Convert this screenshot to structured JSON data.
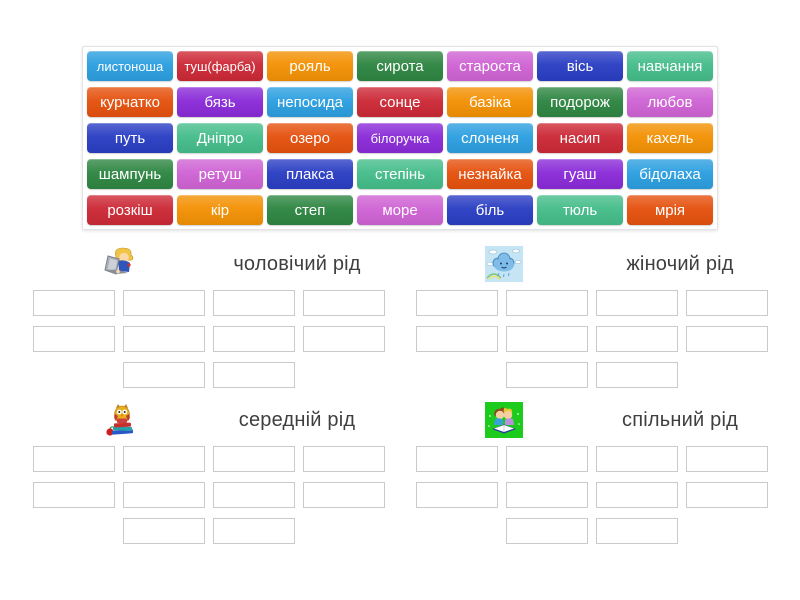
{
  "palette": {
    "azure": "#2c9fe0",
    "crimson": "#cc2936",
    "orange": "#f39104",
    "green": "#2e8642",
    "orchid": "#cf63d4",
    "royal": "#2a3ec3",
    "seafoam": "#45bd8a",
    "deep_orange": "#e5510e",
    "violet": "#8a2bd8"
  },
  "word_bank": {
    "tiles": [
      {
        "label": "листоноша",
        "color": "azure"
      },
      {
        "label": "туш(фарба)",
        "color": "crimson"
      },
      {
        "label": "рояль",
        "color": "orange"
      },
      {
        "label": "сирота",
        "color": "green"
      },
      {
        "label": "староста",
        "color": "orchid"
      },
      {
        "label": "вісь",
        "color": "royal"
      },
      {
        "label": "навчання",
        "color": "seafoam"
      },
      {
        "label": "курчатко",
        "color": "deep_orange"
      },
      {
        "label": "бязь",
        "color": "violet"
      },
      {
        "label": "непосида",
        "color": "azure"
      },
      {
        "label": "сонце",
        "color": "crimson"
      },
      {
        "label": "базіка",
        "color": "orange"
      },
      {
        "label": "подорож",
        "color": "green"
      },
      {
        "label": "любов",
        "color": "orchid"
      },
      {
        "label": "путь",
        "color": "royal"
      },
      {
        "label": "Дніпро",
        "color": "seafoam"
      },
      {
        "label": "озеро",
        "color": "deep_orange"
      },
      {
        "label": "білоручка",
        "color": "violet"
      },
      {
        "label": "слоненя",
        "color": "azure"
      },
      {
        "label": "насип",
        "color": "crimson"
      },
      {
        "label": "кахель",
        "color": "orange"
      },
      {
        "label": "шампунь",
        "color": "green"
      },
      {
        "label": "ретуш",
        "color": "orchid"
      },
      {
        "label": "плакса",
        "color": "royal"
      },
      {
        "label": "степінь",
        "color": "seafoam"
      },
      {
        "label": "незнайка",
        "color": "deep_orange"
      },
      {
        "label": "гуаш",
        "color": "violet"
      },
      {
        "label": "бідолаха",
        "color": "azure"
      },
      {
        "label": "розкіш",
        "color": "crimson"
      },
      {
        "label": "кір",
        "color": "orange"
      },
      {
        "label": "степ",
        "color": "green"
      },
      {
        "label": "море",
        "color": "orchid"
      },
      {
        "label": "біль",
        "color": "royal"
      },
      {
        "label": "тюль",
        "color": "seafoam"
      },
      {
        "label": "мрія",
        "color": "deep_orange"
      }
    ]
  },
  "groups": [
    {
      "label": "чоловічий рід",
      "icon": "boy-laptop-icon",
      "slot_rows": [
        4,
        4,
        2
      ]
    },
    {
      "label": "жіночий рід",
      "icon": "cloud-icon",
      "slot_rows": [
        4,
        4,
        2
      ]
    },
    {
      "label": "середній рід",
      "icon": "owl-books-icon",
      "slot_rows": [
        4,
        4,
        2
      ]
    },
    {
      "label": "спільний рід",
      "icon": "kids-book-icon",
      "slot_rows": [
        4,
        4,
        2
      ]
    }
  ]
}
